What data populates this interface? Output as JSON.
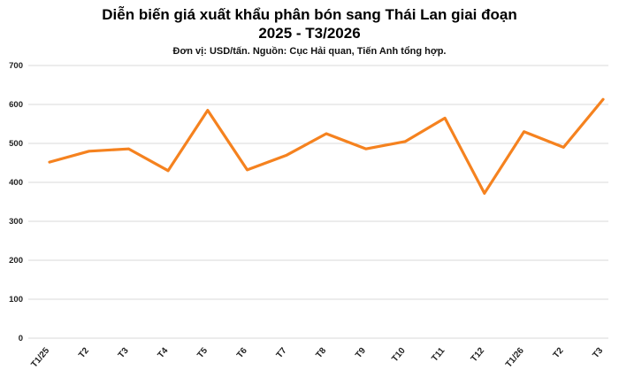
{
  "header": {
    "title_line1": "Diễn biến giá xuất khẩu phân bón sang Thái Lan giai đoạn",
    "title_line2": "2025 - T3/2026",
    "subtitle": "Đơn vị: USD/tấn. Nguồn: Cục Hải quan, Tiến Anh tổng hợp."
  },
  "chart_data": {
    "type": "line",
    "title": "Diễn biến giá xuất khẩu phân bón sang Thái Lan giai đoạn 2025 - T3/2026",
    "subtitle": "Đơn vị: USD/tấn. Nguồn: Cục Hải quan, Tiến Anh tổng hợp.",
    "categories": [
      "T1/25",
      "T2",
      "T3",
      "T4",
      "T5",
      "T6",
      "T7",
      "T8",
      "T9",
      "T10",
      "T11",
      "T12",
      "T1/26",
      "T2",
      "T3"
    ],
    "values": [
      452,
      480,
      486,
      430,
      585,
      432,
      470,
      525,
      486,
      505,
      565,
      372,
      530,
      490,
      613
    ],
    "xlabel": "",
    "ylabel": "",
    "ylim": [
      0,
      700
    ],
    "ytick_step": 100,
    "grid": true,
    "legend_position": "none",
    "line_color": "#f5821f",
    "grid_color": "#d9d9d9",
    "tick_label_color": "#222222"
  }
}
